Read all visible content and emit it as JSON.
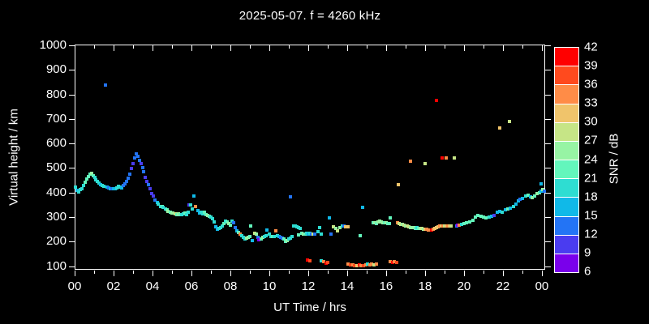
{
  "window": {
    "title": "2025-05-07. f = 4260 kHz"
  },
  "colors": {
    "background": "#000000",
    "frame": "#FFFFFF",
    "text": "#FFFFFF"
  },
  "chart_data": {
    "type": "scatter",
    "title": "2025-05-07. f = 4260 kHz",
    "xlabel": "UT Time / hrs",
    "ylabel": "Virtual height / km",
    "colorbar_label": "SNR / dB",
    "grid": false,
    "legend_position": "right-colorbar",
    "xlim": [
      0,
      24.17
    ],
    "ylim": [
      86,
      1003
    ],
    "x_major_ticks": [
      {
        "hour": 0,
        "label": "00"
      },
      {
        "hour": 2,
        "label": "02"
      },
      {
        "hour": 4,
        "label": "04"
      },
      {
        "hour": 6,
        "label": "06"
      },
      {
        "hour": 8,
        "label": "08"
      },
      {
        "hour": 10,
        "label": "10"
      },
      {
        "hour": 12,
        "label": "12"
      },
      {
        "hour": 14,
        "label": "14"
      },
      {
        "hour": 16,
        "label": "16"
      },
      {
        "hour": 18,
        "label": "18"
      },
      {
        "hour": 20,
        "label": "20"
      },
      {
        "hour": 22,
        "label": "22"
      },
      {
        "hour": 24,
        "label": "00"
      }
    ],
    "x_minor_hours": [
      1,
      3,
      5,
      7,
      9,
      11,
      13,
      15,
      17,
      19,
      21,
      23
    ],
    "y_ticks": [
      100,
      200,
      300,
      400,
      500,
      600,
      700,
      800,
      900,
      1000
    ],
    "colorbar": {
      "min_db": 6,
      "max_db": 42,
      "step_db": 3,
      "tick_labels": [
        6,
        9,
        12,
        15,
        18,
        21,
        24,
        27,
        30,
        33,
        36,
        39,
        42
      ],
      "bin_colors_bottom_to_top": [
        "#7A00EB",
        "#4A3CF0",
        "#2374F5",
        "#10B9E8",
        "#2EDDD2",
        "#63F6BC",
        "#97F4A4",
        "#C6E586",
        "#F0C46B",
        "#FF8C47",
        "#FF4A1E",
        "#FF0000"
      ]
    },
    "point_fields": [
      "ut_hour",
      "virtual_height_km",
      "snr_db"
    ],
    "points": [
      [
        0.0,
        425,
        18
      ],
      [
        0.08,
        412,
        15
      ],
      [
        0.17,
        405,
        18
      ],
      [
        0.25,
        415,
        18
      ],
      [
        0.33,
        420,
        20
      ],
      [
        0.42,
        432,
        18
      ],
      [
        0.5,
        445,
        21
      ],
      [
        0.58,
        458,
        21
      ],
      [
        0.67,
        468,
        22
      ],
      [
        0.76,
        478,
        22
      ],
      [
        0.82,
        481,
        24
      ],
      [
        0.9,
        472,
        21
      ],
      [
        0.98,
        465,
        18
      ],
      [
        1.06,
        457,
        18
      ],
      [
        1.14,
        450,
        18
      ],
      [
        1.22,
        442,
        18
      ],
      [
        1.3,
        437,
        16
      ],
      [
        1.38,
        432,
        18
      ],
      [
        1.46,
        428,
        18
      ],
      [
        1.55,
        840,
        13
      ],
      [
        1.63,
        425,
        16
      ],
      [
        1.71,
        422,
        13
      ],
      [
        1.79,
        420,
        15
      ],
      [
        1.88,
        419,
        13
      ],
      [
        1.96,
        418,
        15
      ],
      [
        2.04,
        420,
        16
      ],
      [
        2.13,
        424,
        18
      ],
      [
        2.21,
        428,
        18
      ],
      [
        2.29,
        426,
        18
      ],
      [
        2.38,
        424,
        15
      ],
      [
        2.46,
        432,
        13
      ],
      [
        2.54,
        440,
        13
      ],
      [
        2.63,
        450,
        14
      ],
      [
        2.71,
        462,
        13
      ],
      [
        2.79,
        478,
        12
      ],
      [
        2.88,
        500,
        10
      ],
      [
        2.96,
        522,
        10
      ],
      [
        3.04,
        545,
        12
      ],
      [
        3.12,
        562,
        13
      ],
      [
        3.2,
        552,
        12
      ],
      [
        3.28,
        535,
        13
      ],
      [
        3.36,
        520,
        10
      ],
      [
        3.44,
        505,
        12
      ],
      [
        3.52,
        488,
        13
      ],
      [
        3.6,
        465,
        10
      ],
      [
        3.68,
        448,
        9
      ],
      [
        3.77,
        435,
        12
      ],
      [
        3.85,
        418,
        10
      ],
      [
        3.93,
        400,
        9
      ],
      [
        4.02,
        388,
        10
      ],
      [
        4.1,
        374,
        14
      ],
      [
        4.19,
        364,
        16
      ],
      [
        4.27,
        355,
        18
      ],
      [
        4.36,
        348,
        20
      ],
      [
        4.44,
        345,
        21
      ],
      [
        4.52,
        342,
        20
      ],
      [
        4.61,
        337,
        19
      ],
      [
        4.69,
        332,
        22
      ],
      [
        4.77,
        328,
        24
      ],
      [
        4.86,
        324,
        21
      ],
      [
        4.94,
        321,
        25
      ],
      [
        5.02,
        319,
        24
      ],
      [
        5.11,
        317,
        27
      ],
      [
        5.19,
        314,
        22
      ],
      [
        5.28,
        317,
        24
      ],
      [
        5.36,
        312,
        21
      ],
      [
        5.44,
        314,
        19
      ],
      [
        5.53,
        317,
        18
      ],
      [
        5.61,
        319,
        21
      ],
      [
        5.69,
        315,
        20
      ],
      [
        5.78,
        322,
        18
      ],
      [
        5.84,
        352,
        9
      ],
      [
        5.92,
        354,
        18
      ],
      [
        6.0,
        338,
        18
      ],
      [
        6.08,
        388,
        17
      ],
      [
        6.17,
        348,
        33
      ],
      [
        6.28,
        330,
        15
      ],
      [
        6.36,
        320,
        17
      ],
      [
        6.44,
        325,
        19
      ],
      [
        6.53,
        318,
        20
      ],
      [
        6.61,
        322,
        21
      ],
      [
        6.69,
        315,
        22
      ],
      [
        6.78,
        310,
        24
      ],
      [
        6.86,
        308,
        22
      ],
      [
        6.94,
        304,
        19
      ],
      [
        7.03,
        296,
        18
      ],
      [
        7.11,
        284,
        18
      ],
      [
        7.19,
        265,
        17
      ],
      [
        7.28,
        255,
        15
      ],
      [
        7.36,
        257,
        18
      ],
      [
        7.44,
        262,
        19
      ],
      [
        7.53,
        268,
        18
      ],
      [
        7.61,
        276,
        21
      ],
      [
        7.69,
        288,
        19
      ],
      [
        7.78,
        283,
        21
      ],
      [
        7.86,
        278,
        25
      ],
      [
        7.94,
        272,
        21
      ],
      [
        8.03,
        286,
        18
      ],
      [
        8.11,
        279,
        14
      ],
      [
        8.19,
        262,
        13
      ],
      [
        8.28,
        246,
        15
      ],
      [
        8.36,
        240,
        21
      ],
      [
        8.44,
        236,
        33
      ],
      [
        8.53,
        229,
        18
      ],
      [
        8.61,
        222,
        19
      ],
      [
        8.69,
        216,
        18
      ],
      [
        8.78,
        219,
        24
      ],
      [
        8.86,
        222,
        25
      ],
      [
        8.94,
        226,
        21
      ],
      [
        9.0,
        268,
        22
      ],
      [
        9.07,
        209,
        15
      ],
      [
        9.19,
        239,
        27
      ],
      [
        9.28,
        233,
        24
      ],
      [
        9.36,
        222,
        13
      ],
      [
        9.42,
        212,
        8
      ],
      [
        9.53,
        216,
        21
      ],
      [
        9.61,
        222,
        25
      ],
      [
        9.69,
        226,
        18
      ],
      [
        9.78,
        229,
        18
      ],
      [
        9.82,
        251,
        17
      ],
      [
        9.94,
        236,
        18
      ],
      [
        10.03,
        226,
        18
      ],
      [
        10.11,
        223,
        21
      ],
      [
        10.19,
        226,
        19
      ],
      [
        10.28,
        248,
        33
      ],
      [
        10.36,
        229,
        18
      ],
      [
        10.44,
        223,
        15
      ],
      [
        10.53,
        221,
        13
      ],
      [
        10.61,
        218,
        13
      ],
      [
        10.69,
        213,
        21
      ],
      [
        10.78,
        206,
        22
      ],
      [
        10.86,
        209,
        24
      ],
      [
        10.94,
        216,
        18
      ],
      [
        11.03,
        219,
        18
      ],
      [
        11.05,
        387,
        14
      ],
      [
        11.11,
        223,
        18
      ],
      [
        11.19,
        268,
        18
      ],
      [
        11.28,
        266,
        19
      ],
      [
        11.36,
        263,
        18
      ],
      [
        11.44,
        261,
        19
      ],
      [
        11.47,
        232,
        22
      ],
      [
        11.53,
        259,
        18
      ],
      [
        11.61,
        239,
        21
      ],
      [
        11.69,
        236,
        24
      ],
      [
        11.78,
        233,
        22
      ],
      [
        11.86,
        239,
        18
      ],
      [
        11.94,
        236,
        15
      ],
      [
        12.03,
        238,
        18
      ],
      [
        12.11,
        235,
        12
      ],
      [
        12.22,
        235,
        28
      ],
      [
        12.3,
        235,
        13
      ],
      [
        12.44,
        243,
        18
      ],
      [
        12.55,
        261,
        18
      ],
      [
        12.64,
        236,
        18
      ],
      [
        13.05,
        301,
        16
      ],
      [
        13.14,
        236,
        13
      ],
      [
        13.26,
        264,
        27
      ],
      [
        13.39,
        256,
        24
      ],
      [
        13.47,
        249,
        27
      ],
      [
        13.59,
        261,
        24
      ],
      [
        13.72,
        268,
        18
      ],
      [
        13.8,
        268,
        13
      ],
      [
        13.89,
        265,
        31
      ],
      [
        14.01,
        265,
        30
      ],
      [
        14.64,
        228,
        22
      ],
      [
        14.76,
        344,
        17
      ],
      [
        15.29,
        280,
        22
      ],
      [
        15.38,
        282,
        24
      ],
      [
        15.46,
        278,
        22
      ],
      [
        15.54,
        284,
        24
      ],
      [
        15.63,
        286,
        25
      ],
      [
        15.71,
        284,
        24
      ],
      [
        15.79,
        282,
        24
      ],
      [
        15.88,
        281,
        22
      ],
      [
        15.96,
        280,
        24
      ],
      [
        16.04,
        278,
        22
      ],
      [
        16.13,
        276,
        21
      ],
      [
        16.18,
        301,
        21
      ],
      [
        16.54,
        281,
        33
      ],
      [
        16.63,
        278,
        28
      ],
      [
        16.71,
        275,
        27
      ],
      [
        16.79,
        273,
        25
      ],
      [
        16.88,
        270,
        27
      ],
      [
        16.96,
        268,
        24
      ],
      [
        17.04,
        266,
        27
      ],
      [
        17.13,
        264,
        28
      ],
      [
        17.21,
        262,
        25
      ],
      [
        17.29,
        261,
        24
      ],
      [
        17.38,
        260,
        24
      ],
      [
        17.46,
        259,
        22
      ],
      [
        17.54,
        260,
        19
      ],
      [
        17.63,
        258,
        21
      ],
      [
        17.71,
        257,
        24
      ],
      [
        17.79,
        256,
        27
      ],
      [
        17.88,
        255,
        25
      ],
      [
        17.96,
        254,
        30
      ],
      [
        18.04,
        253,
        33
      ],
      [
        18.13,
        252,
        33
      ],
      [
        18.21,
        251,
        34
      ],
      [
        18.29,
        252,
        40
      ],
      [
        18.38,
        255,
        33
      ],
      [
        18.46,
        258,
        31
      ],
      [
        18.54,
        260,
        30
      ],
      [
        18.63,
        264,
        31
      ],
      [
        18.71,
        266,
        33
      ],
      [
        18.79,
        268,
        30
      ],
      [
        18.88,
        268,
        33
      ],
      [
        18.96,
        266,
        27
      ],
      [
        19.04,
        268,
        30
      ],
      [
        19.13,
        267,
        33
      ],
      [
        19.21,
        268,
        30
      ],
      [
        19.29,
        266,
        27
      ],
      [
        19.58,
        268,
        13
      ],
      [
        19.63,
        270,
        8
      ],
      [
        19.71,
        271,
        33
      ],
      [
        19.83,
        273,
        18
      ],
      [
        19.96,
        276,
        22
      ],
      [
        20.08,
        280,
        22
      ],
      [
        20.26,
        284,
        22
      ],
      [
        20.4,
        292,
        21
      ],
      [
        20.54,
        303,
        22
      ],
      [
        20.68,
        311,
        21
      ],
      [
        20.82,
        308,
        22
      ],
      [
        20.96,
        303,
        21
      ],
      [
        21.1,
        300,
        22
      ],
      [
        21.24,
        305,
        18
      ],
      [
        21.38,
        308,
        17
      ],
      [
        21.51,
        311,
        9
      ],
      [
        21.65,
        322,
        17
      ],
      [
        21.79,
        327,
        17
      ],
      [
        21.93,
        325,
        19
      ],
      [
        22.07,
        333,
        17
      ],
      [
        22.21,
        336,
        22
      ],
      [
        22.35,
        341,
        17
      ],
      [
        22.49,
        347,
        18
      ],
      [
        22.63,
        355,
        17
      ],
      [
        22.76,
        369,
        17
      ],
      [
        22.83,
        377,
        12
      ],
      [
        22.97,
        380,
        17
      ],
      [
        23.11,
        388,
        19
      ],
      [
        23.25,
        393,
        22
      ],
      [
        23.36,
        387,
        17
      ],
      [
        23.47,
        384,
        24
      ],
      [
        23.6,
        391,
        21
      ],
      [
        23.71,
        398,
        24
      ],
      [
        23.82,
        404,
        22
      ],
      [
        23.92,
        410,
        17
      ],
      [
        23.92,
        440,
        15
      ],
      [
        24.01,
        415,
        24
      ],
      [
        24.08,
        410,
        12
      ],
      [
        16.6,
        436,
        31
      ],
      [
        17.2,
        532,
        34
      ],
      [
        17.94,
        522,
        28
      ],
      [
        18.54,
        779,
        41
      ],
      [
        18.83,
        545,
        40
      ],
      [
        19.04,
        543,
        34
      ],
      [
        19.46,
        546,
        28
      ],
      [
        21.79,
        667,
        30
      ],
      [
        22.3,
        693,
        27
      ],
      [
        11.93,
        128,
        40
      ],
      [
        12.04,
        127,
        36
      ],
      [
        12.63,
        124,
        18
      ],
      [
        12.76,
        121,
        33
      ],
      [
        12.88,
        117,
        39
      ],
      [
        12.97,
        120,
        37
      ],
      [
        14.01,
        112,
        33
      ],
      [
        14.13,
        110,
        38
      ],
      [
        14.24,
        108,
        34
      ],
      [
        14.35,
        107,
        37
      ],
      [
        14.46,
        106,
        31
      ],
      [
        14.57,
        108,
        39
      ],
      [
        14.68,
        107,
        34
      ],
      [
        14.79,
        106,
        38
      ],
      [
        14.9,
        108,
        33
      ],
      [
        15.0,
        112,
        19
      ],
      [
        15.11,
        110,
        34
      ],
      [
        15.22,
        111,
        33
      ],
      [
        15.33,
        109,
        27
      ],
      [
        15.44,
        111,
        34
      ],
      [
        16.17,
        122,
        34
      ],
      [
        16.28,
        120,
        39
      ],
      [
        16.39,
        121,
        35
      ],
      [
        16.5,
        120,
        38
      ]
    ]
  }
}
